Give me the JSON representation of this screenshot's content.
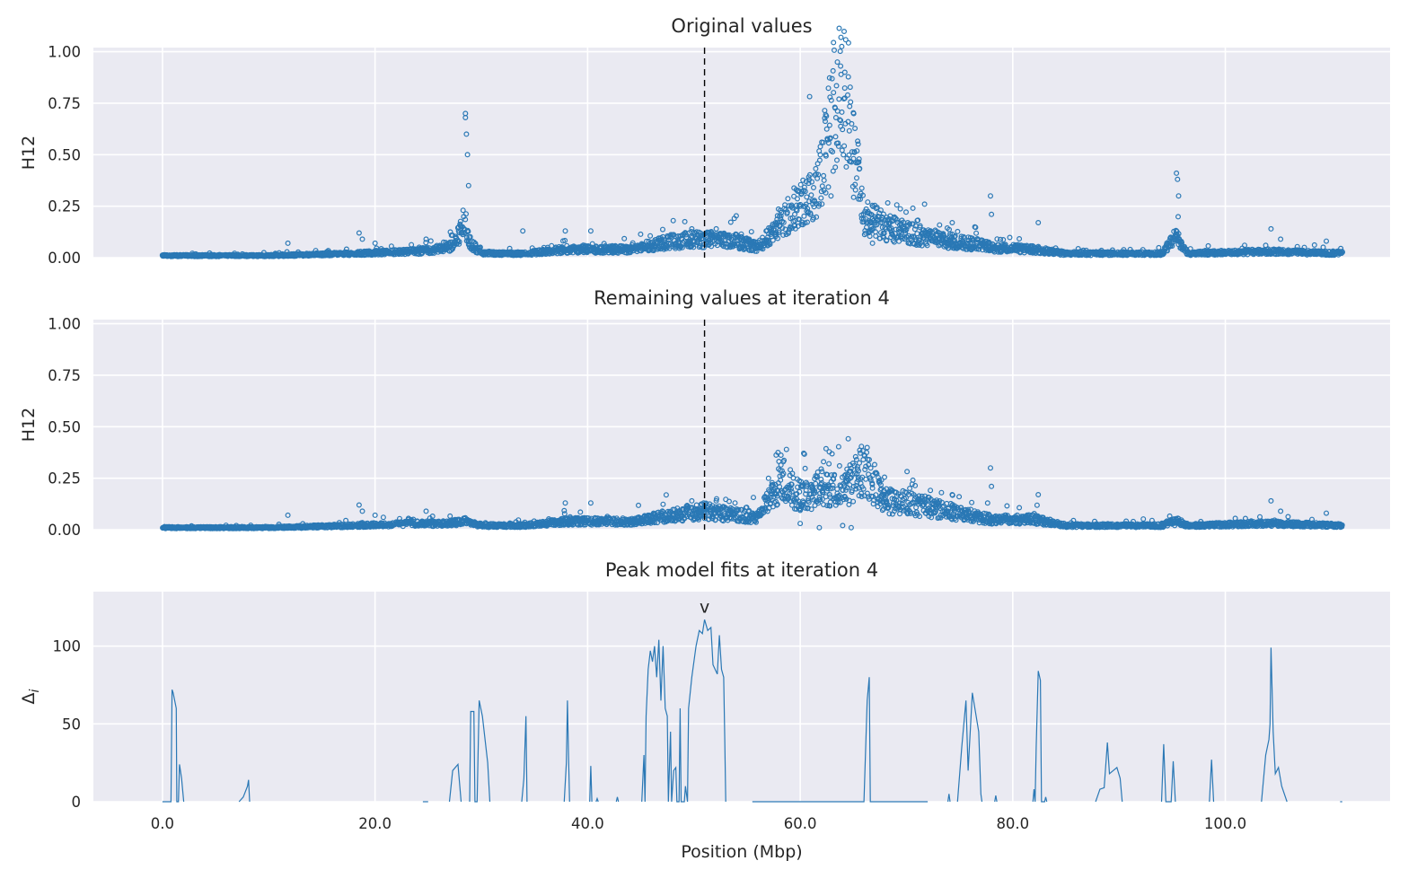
{
  "figure": {
    "xlabel": "Position (Mbp)",
    "colors": {
      "series": "#2a78b5",
      "panel_bg": "#eaeaf2",
      "grid": "#ffffff",
      "marker_line": "#000000",
      "text": "#262626"
    }
  },
  "chart_data": [
    {
      "type": "scatter",
      "title": "Original values",
      "xlabel": "",
      "ylabel": "H12",
      "xlim": [
        -6.5,
        115.5
      ],
      "ylim": [
        0,
        1.02
      ],
      "xticks": [
        0,
        20,
        40,
        60,
        80,
        100
      ],
      "xtick_labels": [
        "0.0",
        "20.0",
        "40.0",
        "60.0",
        "80.0",
        "100.0"
      ],
      "yticks": [
        0,
        0.25,
        0.5,
        0.75,
        1.0
      ],
      "ytick_labels": [
        "0.00",
        "0.25",
        "0.50",
        "0.75",
        "1.00"
      ],
      "xtick_labels_visible": false,
      "grid": true,
      "vline_x": 51.0,
      "x_range": [
        0,
        111
      ],
      "baseline_profile": [
        [
          0,
          0.01
        ],
        [
          10,
          0.01
        ],
        [
          18,
          0.02
        ],
        [
          24,
          0.03
        ],
        [
          27,
          0.05
        ],
        [
          28,
          0.12
        ],
        [
          28.4,
          0.2
        ],
        [
          28.8,
          0.08
        ],
        [
          30,
          0.02
        ],
        [
          34,
          0.02
        ],
        [
          38,
          0.04
        ],
        [
          44,
          0.04
        ],
        [
          48,
          0.08
        ],
        [
          51,
          0.09
        ],
        [
          54,
          0.08
        ],
        [
          56,
          0.05
        ],
        [
          58,
          0.15
        ],
        [
          60,
          0.28
        ],
        [
          61.5,
          0.32
        ],
        [
          62.5,
          0.55
        ],
        [
          63.6,
          0.85
        ],
        [
          64.5,
          0.75
        ],
        [
          65.5,
          0.35
        ],
        [
          66,
          0.2
        ],
        [
          68,
          0.15
        ],
        [
          70,
          0.12
        ],
        [
          74,
          0.08
        ],
        [
          76,
          0.07
        ],
        [
          78,
          0.05
        ],
        [
          82,
          0.04
        ],
        [
          85,
          0.02
        ],
        [
          94,
          0.02
        ],
        [
          95.2,
          0.1
        ],
        [
          95.7,
          0.08
        ],
        [
          96.5,
          0.02
        ],
        [
          104,
          0.03
        ],
        [
          111,
          0.02
        ]
      ],
      "outliers": [
        [
          11.8,
          0.07
        ],
        [
          18.5,
          0.12
        ],
        [
          18.8,
          0.09
        ],
        [
          20,
          0.07
        ],
        [
          24.8,
          0.09
        ],
        [
          28.5,
          0.7
        ],
        [
          28.5,
          0.68
        ],
        [
          28.6,
          0.6
        ],
        [
          28.7,
          0.5
        ],
        [
          28.8,
          0.35
        ],
        [
          33.9,
          0.13
        ],
        [
          37.9,
          0.13
        ],
        [
          40.3,
          0.13
        ],
        [
          49.8,
          0.14
        ],
        [
          52.1,
          0.14
        ],
        [
          59.5,
          0.18
        ],
        [
          62.4,
          0.5
        ],
        [
          63.1,
          0.42
        ],
        [
          63.5,
          0.95
        ],
        [
          63.8,
          0.93
        ],
        [
          64.2,
          0.9
        ],
        [
          62.9,
          0.3
        ],
        [
          65.6,
          0.3
        ],
        [
          66.8,
          0.07
        ],
        [
          70.6,
          0.24
        ],
        [
          74.3,
          0.17
        ],
        [
          77.9,
          0.3
        ],
        [
          78,
          0.21
        ],
        [
          82.4,
          0.17
        ],
        [
          95.4,
          0.41
        ],
        [
          95.5,
          0.38
        ],
        [
          95.6,
          0.3
        ],
        [
          104.3,
          0.14
        ],
        [
          105.2,
          0.09
        ],
        [
          109.5,
          0.08
        ]
      ]
    },
    {
      "type": "scatter",
      "title": "Remaining values at iteration 4",
      "xlabel": "",
      "ylabel": "H12",
      "xlim": [
        -6.5,
        115.5
      ],
      "ylim": [
        0,
        1.02
      ],
      "xticks": [
        0,
        20,
        40,
        60,
        80,
        100
      ],
      "xtick_labels": [
        "0.0",
        "20.0",
        "40.0",
        "60.0",
        "80.0",
        "100.0"
      ],
      "yticks": [
        0,
        0.25,
        0.5,
        0.75,
        1.0
      ],
      "ytick_labels": [
        "0.00",
        "0.25",
        "0.50",
        "0.75",
        "1.00"
      ],
      "xtick_labels_visible": false,
      "grid": true,
      "vline_x": 51.0,
      "x_range": [
        0,
        111
      ],
      "baseline_profile": [
        [
          0,
          0.01
        ],
        [
          10,
          0.01
        ],
        [
          18,
          0.02
        ],
        [
          24,
          0.03
        ],
        [
          27,
          0.03
        ],
        [
          28.5,
          0.04
        ],
        [
          30,
          0.02
        ],
        [
          34,
          0.02
        ],
        [
          38,
          0.04
        ],
        [
          44,
          0.04
        ],
        [
          48,
          0.07
        ],
        [
          51,
          0.09
        ],
        [
          54,
          0.07
        ],
        [
          56,
          0.06
        ],
        [
          57.5,
          0.18
        ],
        [
          58.3,
          0.26
        ],
        [
          59.5,
          0.18
        ],
        [
          61,
          0.15
        ],
        [
          62,
          0.22
        ],
        [
          63,
          0.2
        ],
        [
          64,
          0.18
        ],
        [
          66,
          0.3
        ],
        [
          68,
          0.14
        ],
        [
          70,
          0.13
        ],
        [
          74,
          0.09
        ],
        [
          76,
          0.07
        ],
        [
          78,
          0.05
        ],
        [
          82,
          0.05
        ],
        [
          85,
          0.02
        ],
        [
          94,
          0.02
        ],
        [
          95.5,
          0.04
        ],
        [
          96.5,
          0.02
        ],
        [
          104,
          0.03
        ],
        [
          111,
          0.02
        ]
      ],
      "outliers": [
        [
          11.8,
          0.07
        ],
        [
          18.5,
          0.12
        ],
        [
          18.8,
          0.09
        ],
        [
          20,
          0.07
        ],
        [
          24.8,
          0.09
        ],
        [
          37.9,
          0.13
        ],
        [
          40.3,
          0.13
        ],
        [
          49.8,
          0.14
        ],
        [
          52.1,
          0.14
        ],
        [
          60,
          0.03
        ],
        [
          62.2,
          0.33
        ],
        [
          62.7,
          0.32
        ],
        [
          63.7,
          0.31
        ],
        [
          64,
          0.02
        ],
        [
          64.8,
          0.01
        ],
        [
          61.8,
          0.01
        ],
        [
          66.5,
          0.34
        ],
        [
          70.6,
          0.24
        ],
        [
          74.3,
          0.17
        ],
        [
          77.9,
          0.3
        ],
        [
          78,
          0.21
        ],
        [
          82.4,
          0.17
        ],
        [
          104.3,
          0.14
        ],
        [
          105.2,
          0.09
        ],
        [
          109.5,
          0.08
        ]
      ]
    },
    {
      "type": "line",
      "title": "Peak model fits at iteration 4",
      "xlabel": "Position (Mbp)",
      "ylabel": "Δi",
      "xlim": [
        -6.5,
        115.5
      ],
      "ylim": [
        0,
        135
      ],
      "xticks": [
        0,
        20,
        40,
        60,
        80,
        100
      ],
      "xtick_labels": [
        "0.0",
        "20.0",
        "40.0",
        "60.0",
        "80.0",
        "100.0"
      ],
      "yticks": [
        0,
        50,
        100
      ],
      "ytick_labels": [
        "0",
        "50",
        "100"
      ],
      "xtick_labels_visible": true,
      "grid": true,
      "annotation": {
        "text": "v",
        "x": 51.0,
        "y": 118
      },
      "segments": [
        [
          [
            0,
            0
          ],
          [
            0.8,
            0
          ],
          [
            0.9,
            72
          ],
          [
            1,
            70
          ],
          [
            1.3,
            60
          ],
          [
            1.35,
            0
          ],
          [
            1.5,
            0
          ],
          [
            1.6,
            24
          ],
          [
            1.8,
            15
          ],
          [
            2,
            0
          ]
        ],
        [
          [
            7.2,
            0
          ],
          [
            7.6,
            3
          ],
          [
            8,
            10
          ],
          [
            8.1,
            14
          ],
          [
            8.2,
            0
          ]
        ],
        [
          [
            24.5,
            0
          ],
          [
            25,
            0
          ]
        ],
        [
          [
            27,
            0
          ],
          [
            27.3,
            20
          ],
          [
            27.8,
            24
          ],
          [
            28.1,
            0
          ]
        ],
        [
          [
            28.9,
            0
          ],
          [
            29,
            58
          ],
          [
            29.3,
            58
          ],
          [
            29.4,
            0
          ],
          [
            29.6,
            0
          ],
          [
            29.8,
            65
          ],
          [
            30.1,
            55
          ],
          [
            30.6,
            25
          ],
          [
            30.8,
            0
          ]
        ],
        [
          [
            33.8,
            0
          ],
          [
            34,
            15
          ],
          [
            34.2,
            55
          ],
          [
            34.3,
            0
          ]
        ],
        [
          [
            37.8,
            0
          ],
          [
            38,
            25
          ],
          [
            38.1,
            65
          ],
          [
            38.2,
            30
          ],
          [
            38.3,
            0
          ]
        ],
        [
          [
            40.2,
            0
          ],
          [
            40.3,
            23
          ],
          [
            40.4,
            0
          ]
        ],
        [
          [
            40.8,
            0
          ],
          [
            40.9,
            2
          ],
          [
            41,
            0
          ]
        ],
        [
          [
            42.7,
            0
          ],
          [
            42.8,
            3
          ],
          [
            42.9,
            0
          ]
        ],
        [
          [
            45.1,
            0
          ],
          [
            45.3,
            30
          ],
          [
            45.4,
            0
          ],
          [
            45.5,
            55
          ],
          [
            45.7,
            85
          ],
          [
            45.9,
            97
          ],
          [
            46.1,
            90
          ],
          [
            46.3,
            100
          ],
          [
            46.5,
            80
          ],
          [
            46.7,
            104
          ],
          [
            46.9,
            65
          ],
          [
            47.1,
            100
          ],
          [
            47.3,
            60
          ],
          [
            47.5,
            55
          ],
          [
            47.6,
            0
          ],
          [
            47.8,
            45
          ],
          [
            47.9,
            0
          ],
          [
            48.1,
            20
          ],
          [
            48.3,
            22
          ],
          [
            48.4,
            0
          ],
          [
            48.6,
            0
          ],
          [
            48.7,
            60
          ],
          [
            48.8,
            0
          ],
          [
            49.1,
            0
          ],
          [
            49.2,
            10
          ],
          [
            49.4,
            0
          ],
          [
            49.5,
            60
          ],
          [
            49.8,
            80
          ],
          [
            50.2,
            100
          ],
          [
            50.5,
            110
          ],
          [
            50.8,
            108
          ],
          [
            51,
            117
          ],
          [
            51.3,
            110
          ],
          [
            51.6,
            112
          ],
          [
            51.8,
            88
          ],
          [
            52.2,
            82
          ],
          [
            52.4,
            107
          ],
          [
            52.6,
            85
          ],
          [
            52.8,
            80
          ],
          [
            52.9,
            40
          ],
          [
            53,
            0
          ]
        ],
        [
          [
            55.5,
            0
          ],
          [
            62,
            0
          ],
          [
            66,
            0
          ],
          [
            66.3,
            65
          ],
          [
            66.5,
            80
          ],
          [
            66.6,
            0
          ],
          [
            72,
            0
          ]
        ],
        [
          [
            73.9,
            0
          ],
          [
            74,
            5
          ],
          [
            74.1,
            0
          ]
        ],
        [
          [
            74.8,
            0
          ],
          [
            75.2,
            35
          ],
          [
            75.6,
            65
          ],
          [
            75.8,
            20
          ],
          [
            76.2,
            70
          ],
          [
            76.8,
            45
          ],
          [
            77,
            5
          ],
          [
            77.1,
            0
          ]
        ],
        [
          [
            78.3,
            0
          ],
          [
            78.4,
            4
          ],
          [
            78.5,
            0
          ]
        ],
        [
          [
            81.9,
            0
          ],
          [
            82,
            8
          ],
          [
            82.1,
            0
          ],
          [
            82.2,
            35
          ],
          [
            82.4,
            84
          ],
          [
            82.6,
            78
          ],
          [
            82.7,
            0
          ],
          [
            83,
            0
          ],
          [
            83.1,
            3
          ],
          [
            83.2,
            0
          ]
        ],
        [
          [
            87.8,
            0
          ],
          [
            88.2,
            8
          ],
          [
            88.6,
            9
          ],
          [
            88.9,
            38
          ],
          [
            89.1,
            18
          ],
          [
            89.8,
            22
          ],
          [
            90.1,
            15
          ],
          [
            90.3,
            0
          ]
        ],
        [
          [
            94,
            0
          ],
          [
            94.2,
            37
          ],
          [
            94.4,
            0
          ],
          [
            94.9,
            0
          ],
          [
            95.1,
            26
          ],
          [
            95.3,
            0
          ]
        ],
        [
          [
            98.5,
            0
          ],
          [
            98.7,
            27
          ],
          [
            98.9,
            0
          ]
        ],
        [
          [
            103.4,
            0
          ],
          [
            103.8,
            30
          ],
          [
            104.1,
            40
          ],
          [
            104.2,
            50
          ],
          [
            104.3,
            99
          ],
          [
            104.5,
            45
          ],
          [
            104.7,
            18
          ],
          [
            105,
            22
          ],
          [
            105.3,
            10
          ],
          [
            105.8,
            0
          ]
        ],
        [
          [
            110.8,
            0
          ],
          [
            111,
            0
          ]
        ]
      ]
    }
  ]
}
